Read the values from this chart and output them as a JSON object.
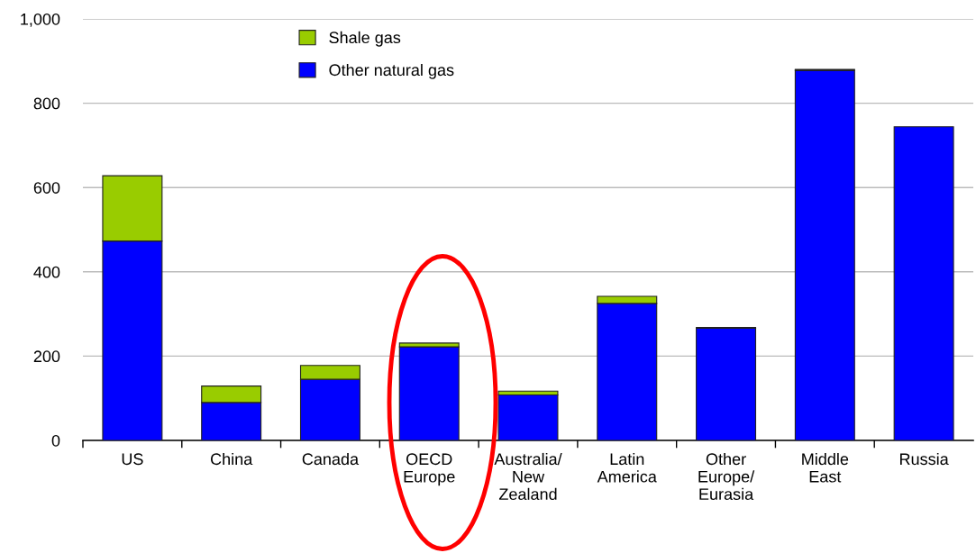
{
  "chart_data": {
    "type": "bar",
    "stacked": true,
    "categories": [
      "US",
      "China",
      "Canada",
      "OECD\nEurope",
      "Australia/\nNew\nZealand",
      "Latin\nAmerica",
      "Other\nEurope/\nEurasia",
      "Middle\nEast",
      "Russia"
    ],
    "series": [
      {
        "name": "Other natural gas",
        "color": "#0000ff",
        "values": [
          473,
          90,
          145,
          222,
          108,
          325,
          266,
          878,
          744
        ]
      },
      {
        "name": "Shale gas",
        "color": "#99cc00",
        "values": [
          155,
          39,
          33,
          9,
          9,
          17,
          2,
          2,
          null
        ]
      }
    ],
    "ylim": [
      0,
      1000
    ],
    "yticks": [
      0,
      200,
      400,
      600,
      800,
      {
        "value": 1000,
        "label": "1,000"
      }
    ],
    "grid": "y",
    "legend": "top"
  }
}
